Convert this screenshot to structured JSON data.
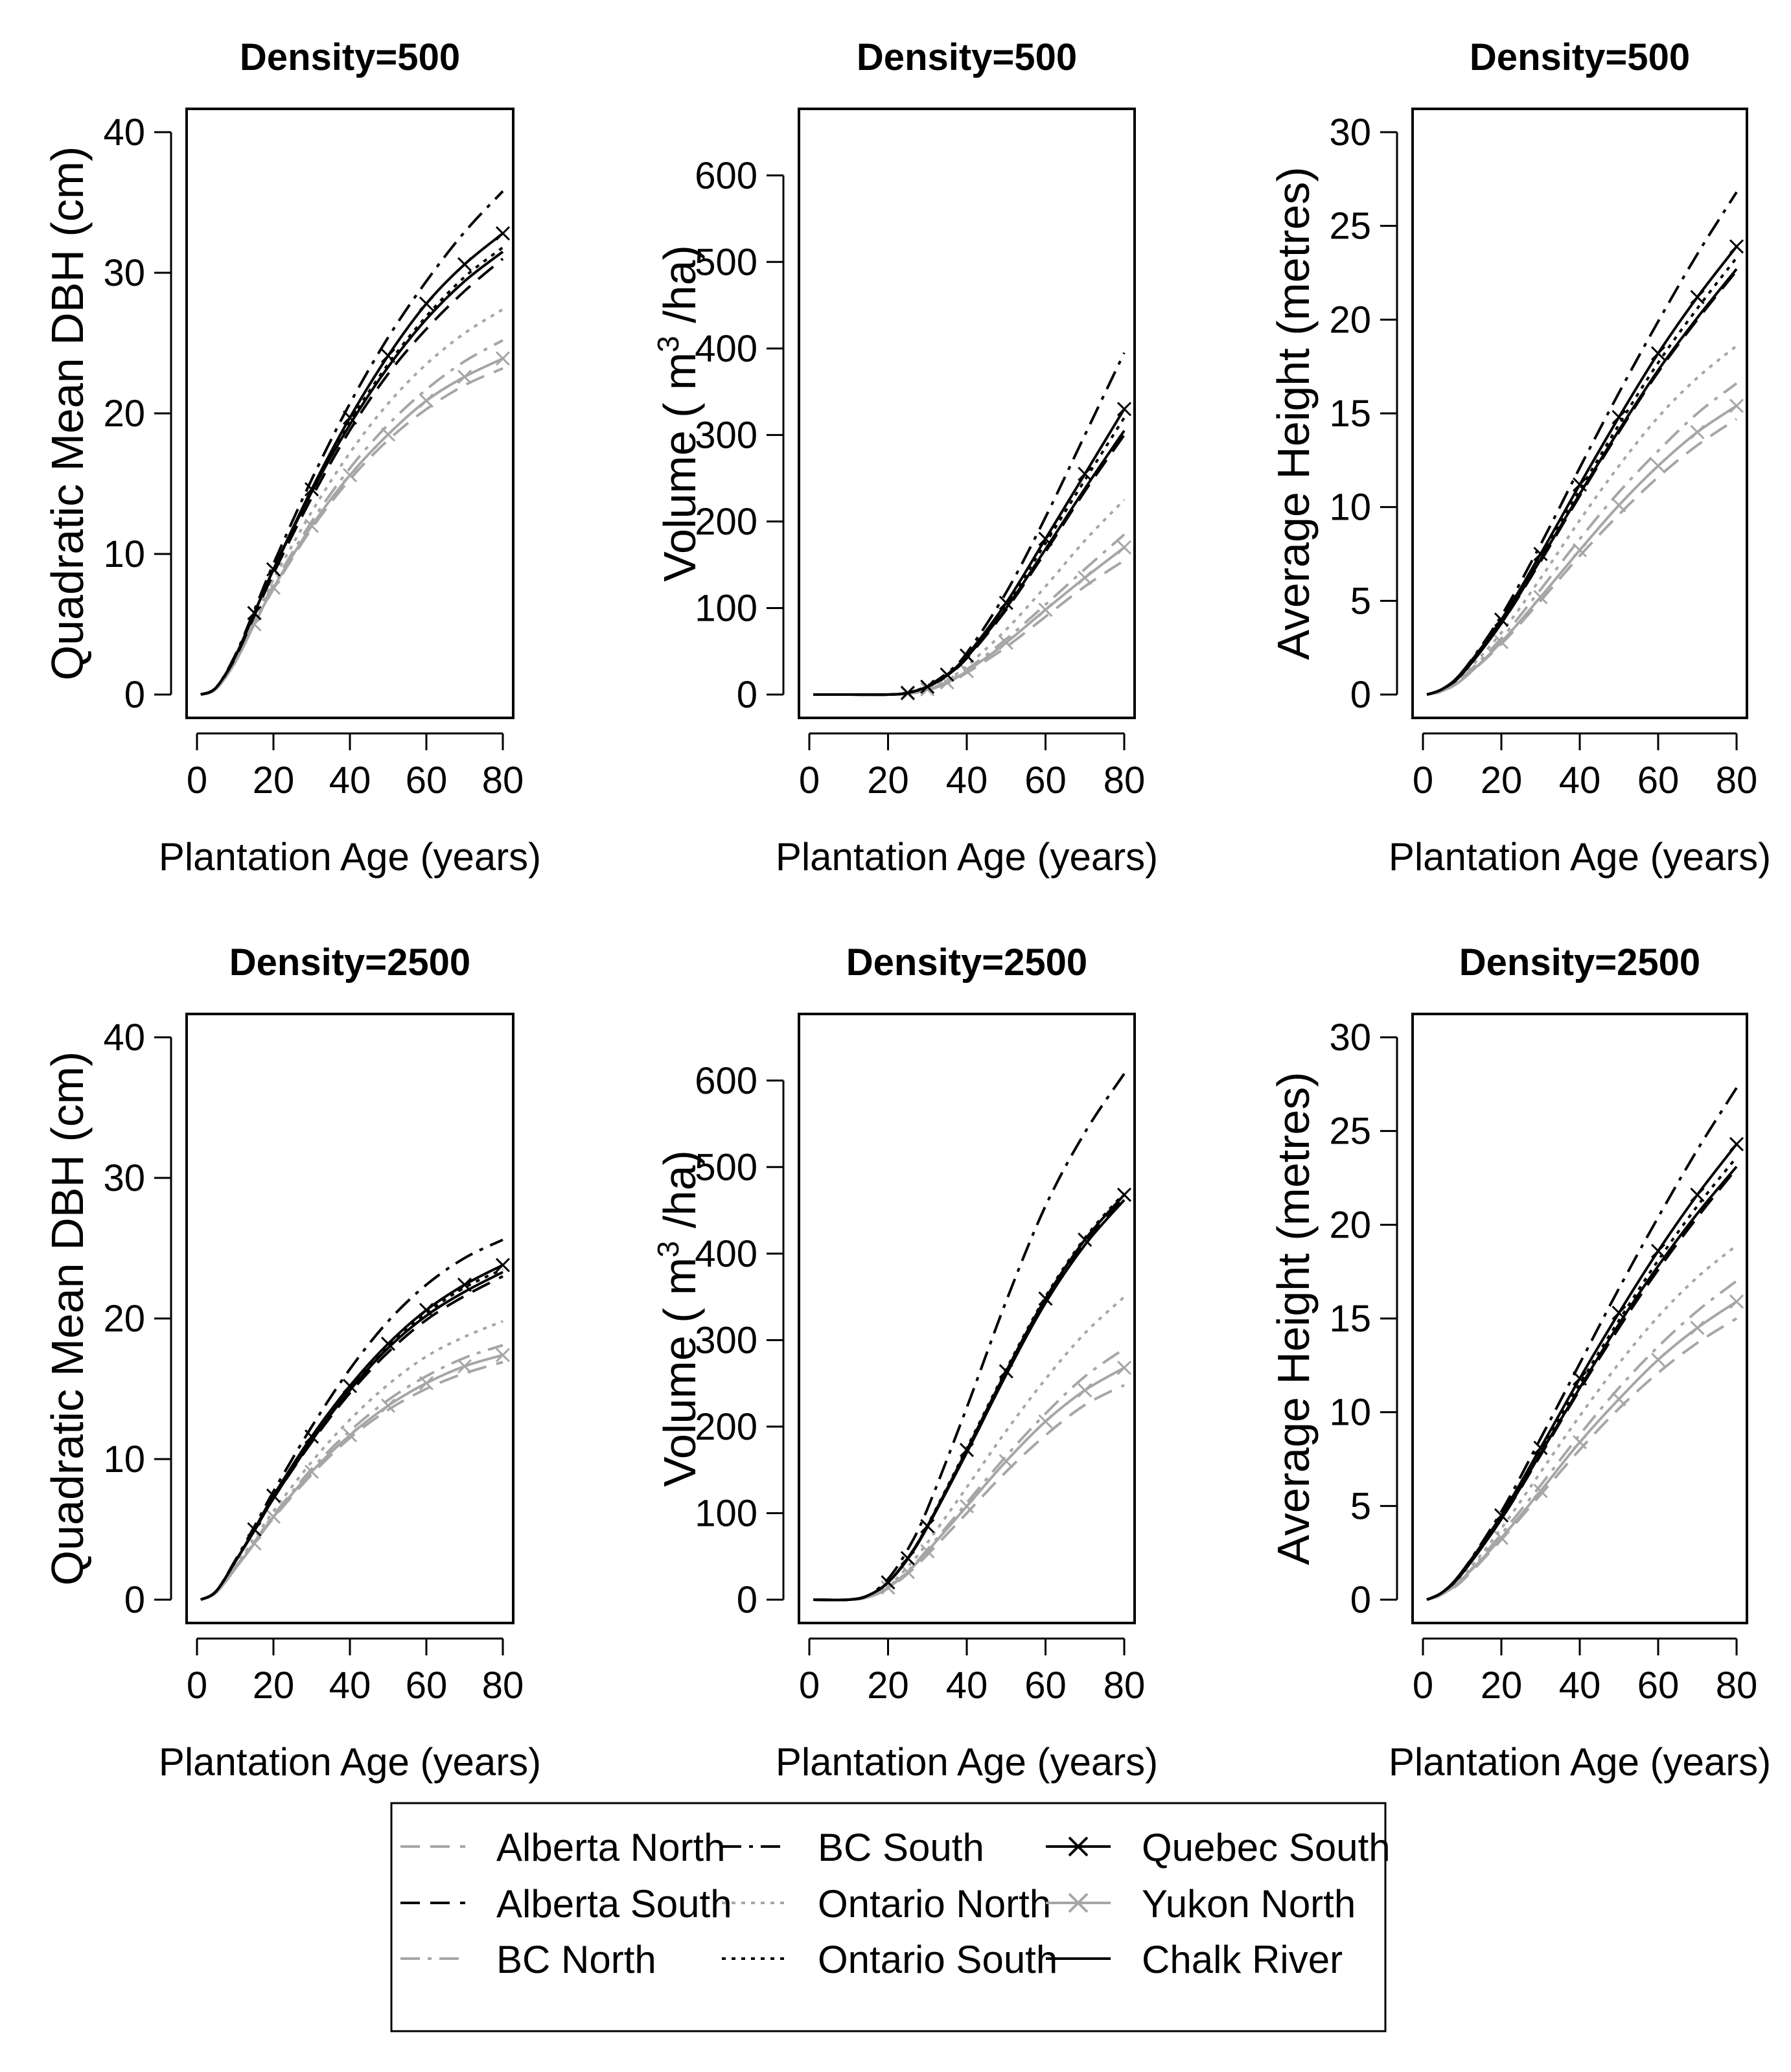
{
  "chart_data": [
    {
      "type": "line",
      "title": "Density=500",
      "xlabel": "Plantation Age (years)",
      "ylabel": "Quadratic Mean DBH (cm)",
      "xlim": [
        0,
        80
      ],
      "ylim": [
        0,
        40
      ],
      "xticks": [
        0,
        20,
        40,
        60,
        80
      ],
      "yticks": [
        0,
        10,
        20,
        30,
        40
      ],
      "x": [
        1,
        5,
        10,
        15,
        20,
        30,
        40,
        50,
        60,
        70,
        80
      ],
      "series": [
        {
          "name": "Alberta North",
          "values": [
            0,
            0.4,
            2.3,
            5.0,
            7.5,
            11.8,
            15.3,
            18.1,
            20.3,
            22.0,
            23.2
          ]
        },
        {
          "name": "Alberta South",
          "values": [
            0,
            0.5,
            2.6,
            5.6,
            8.6,
            14.0,
            18.8,
            22.8,
            26.0,
            28.7,
            31.0
          ]
        },
        {
          "name": "BC North",
          "values": [
            0,
            0.4,
            2.4,
            5.2,
            7.8,
            12.3,
            16.1,
            19.2,
            21.7,
            23.7,
            25.2
          ]
        },
        {
          "name": "BC South",
          "values": [
            0,
            0.5,
            2.8,
            6.0,
            9.3,
            15.3,
            20.7,
            25.4,
            29.4,
            32.9,
            35.8
          ]
        },
        {
          "name": "Ontario North",
          "values": [
            0,
            0.4,
            2.5,
            5.4,
            8.2,
            13.0,
            17.2,
            20.7,
            23.5,
            25.7,
            27.4
          ]
        },
        {
          "name": "Ontario South",
          "values": [
            0,
            0.5,
            2.7,
            5.8,
            8.9,
            14.5,
            19.4,
            23.5,
            26.9,
            29.7,
            31.8
          ]
        },
        {
          "name": "Quebec South",
          "values": [
            0,
            0.5,
            2.7,
            5.8,
            8.9,
            14.6,
            19.7,
            24.1,
            27.8,
            30.6,
            32.8
          ]
        },
        {
          "name": "Yukon North",
          "values": [
            0,
            0.4,
            2.3,
            5.0,
            7.6,
            12.0,
            15.6,
            18.5,
            20.9,
            22.6,
            23.9
          ]
        },
        {
          "name": "Chalk River",
          "values": [
            0,
            0.5,
            2.7,
            5.8,
            8.9,
            14.4,
            19.2,
            23.3,
            26.7,
            29.4,
            31.5
          ]
        }
      ]
    },
    {
      "type": "line",
      "title": "Density=500",
      "xlabel": "Plantation Age (years)",
      "ylabel": "Volume ( m3 /ha)",
      "xlim": [
        0,
        80
      ],
      "ylim": [
        0,
        650
      ],
      "xticks": [
        0,
        20,
        40,
        60,
        80
      ],
      "yticks": [
        0,
        100,
        200,
        300,
        400,
        500,
        600
      ],
      "x": [
        1,
        10,
        20,
        25,
        30,
        35,
        40,
        50,
        60,
        70,
        80
      ],
      "series": [
        {
          "name": "Alberta North",
          "values": [
            0,
            0,
            0,
            1,
            5,
            13,
            25,
            55,
            90,
            125,
            155
          ]
        },
        {
          "name": "Alberta South",
          "values": [
            0,
            0,
            0,
            2,
            9,
            22,
            42,
            98,
            165,
            235,
            300
          ]
        },
        {
          "name": "BC North",
          "values": [
            0,
            0,
            0,
            1,
            6,
            15,
            29,
            64,
            104,
            145,
            185
          ]
        },
        {
          "name": "BC South",
          "values": [
            0,
            0,
            0,
            2,
            10,
            25,
            48,
            118,
            205,
            300,
            395
          ]
        },
        {
          "name": "Ontario North",
          "values": [
            0,
            0,
            0,
            1,
            7,
            17,
            33,
            75,
            125,
            178,
            225
          ]
        },
        {
          "name": "Ontario South",
          "values": [
            0,
            0,
            0,
            2,
            9,
            23,
            44,
            104,
            175,
            248,
            320
          ]
        },
        {
          "name": "Quebec South",
          "values": [
            0,
            0,
            0,
            2,
            9,
            23,
            45,
            106,
            180,
            255,
            330
          ]
        },
        {
          "name": "Yukon North",
          "values": [
            0,
            0,
            0,
            1,
            6,
            14,
            27,
            60,
            98,
            135,
            170
          ]
        },
        {
          "name": "Chalk River",
          "values": [
            0,
            0,
            0,
            2,
            9,
            22,
            43,
            100,
            168,
            238,
            305
          ]
        }
      ]
    },
    {
      "type": "line",
      "title": "Density=500",
      "xlabel": "Plantation Age (years)",
      "ylabel": "Average Height (metres)",
      "xlim": [
        0,
        80
      ],
      "ylim": [
        0,
        30
      ],
      "xticks": [
        0,
        20,
        40,
        60,
        80
      ],
      "yticks": [
        0,
        5,
        10,
        15,
        20,
        25,
        30
      ],
      "x": [
        1,
        5,
        10,
        20,
        30,
        40,
        50,
        60,
        70,
        80
      ],
      "series": [
        {
          "name": "Alberta North",
          "values": [
            0,
            0.2,
            0.8,
            2.7,
            5.0,
            7.4,
            9.6,
            11.6,
            13.3,
            14.7
          ]
        },
        {
          "name": "Alberta South",
          "values": [
            0,
            0.3,
            1.1,
            3.8,
            7.1,
            10.6,
            14.0,
            17.2,
            20.0,
            22.6
          ]
        },
        {
          "name": "BC North",
          "values": [
            0,
            0.2,
            0.9,
            3.0,
            5.6,
            8.3,
            10.8,
            13.0,
            15.0,
            16.6
          ]
        },
        {
          "name": "BC South",
          "values": [
            0,
            0.3,
            1.2,
            4.2,
            8.0,
            12.1,
            16.1,
            19.9,
            23.5,
            26.8
          ]
        },
        {
          "name": "Ontario North",
          "values": [
            0,
            0.2,
            1.0,
            3.3,
            6.2,
            9.3,
            12.2,
            14.8,
            16.9,
            18.6
          ]
        },
        {
          "name": "Ontario South",
          "values": [
            0,
            0.3,
            1.1,
            3.9,
            7.3,
            10.9,
            14.4,
            17.7,
            20.6,
            23.3
          ]
        },
        {
          "name": "Quebec South",
          "values": [
            0,
            0.3,
            1.2,
            4.0,
            7.5,
            11.2,
            14.8,
            18.2,
            21.2,
            23.9
          ]
        },
        {
          "name": "Yukon North",
          "values": [
            0,
            0.2,
            0.8,
            2.8,
            5.2,
            7.7,
            10.1,
            12.2,
            14.0,
            15.4
          ]
        },
        {
          "name": "Chalk River",
          "values": [
            0,
            0.3,
            1.1,
            3.8,
            7.2,
            10.7,
            14.1,
            17.3,
            20.1,
            22.7
          ]
        }
      ]
    },
    {
      "type": "line",
      "title": "Density=2500",
      "xlabel": "Plantation Age (years)",
      "ylabel": "Quadratic Mean DBH (cm)",
      "xlim": [
        0,
        80
      ],
      "ylim": [
        0,
        40
      ],
      "xticks": [
        0,
        20,
        40,
        60,
        80
      ],
      "yticks": [
        0,
        10,
        20,
        30,
        40
      ],
      "x": [
        1,
        5,
        10,
        15,
        20,
        30,
        40,
        50,
        60,
        70,
        80
      ],
      "series": [
        {
          "name": "Alberta North",
          "values": [
            0,
            0.5,
            2.2,
            4.0,
            5.8,
            8.9,
            11.5,
            13.5,
            15.0,
            16.1,
            16.9
          ]
        },
        {
          "name": "Alberta South",
          "values": [
            0,
            0.6,
            2.7,
            4.9,
            7.2,
            11.2,
            14.7,
            17.6,
            19.9,
            21.6,
            23.0
          ]
        },
        {
          "name": "BC North",
          "values": [
            0,
            0.5,
            2.3,
            4.1,
            6.0,
            9.3,
            12.0,
            14.2,
            15.9,
            17.2,
            18.1
          ]
        },
        {
          "name": "BC South",
          "values": [
            0,
            0.6,
            2.8,
            5.2,
            7.7,
            12.3,
            16.4,
            19.8,
            22.4,
            24.3,
            25.6
          ]
        },
        {
          "name": "Ontario North",
          "values": [
            0,
            0.5,
            2.4,
            4.3,
            6.3,
            9.8,
            12.8,
            15.3,
            17.3,
            18.7,
            19.8
          ]
        },
        {
          "name": "Ontario South",
          "values": [
            0,
            0.6,
            2.7,
            5.0,
            7.3,
            11.5,
            15.1,
            18.1,
            20.4,
            22.2,
            23.5
          ]
        },
        {
          "name": "Quebec South",
          "values": [
            0,
            0.6,
            2.7,
            5.0,
            7.4,
            11.6,
            15.2,
            18.2,
            20.6,
            22.4,
            23.8
          ]
        },
        {
          "name": "Yukon North",
          "values": [
            0,
            0.5,
            2.2,
            4.0,
            5.9,
            9.1,
            11.7,
            13.8,
            15.4,
            16.6,
            17.4
          ]
        },
        {
          "name": "Chalk River",
          "values": [
            0,
            0.6,
            2.7,
            4.9,
            7.2,
            11.3,
            14.9,
            17.9,
            20.2,
            21.9,
            23.3
          ]
        }
      ]
    },
    {
      "type": "line",
      "title": "Density=2500",
      "xlabel": "Plantation Age (years)",
      "ylabel": "Volume ( m3 /ha)",
      "xlim": [
        0,
        80
      ],
      "ylim": [
        0,
        650
      ],
      "xticks": [
        0,
        20,
        40,
        60,
        80
      ],
      "yticks": [
        0,
        100,
        200,
        300,
        400,
        500,
        600
      ],
      "x": [
        1,
        10,
        15,
        20,
        25,
        30,
        40,
        50,
        60,
        70,
        80
      ],
      "series": [
        {
          "name": "Alberta North",
          "values": [
            0,
            0,
            3,
            13,
            30,
            52,
            100,
            148,
            190,
            225,
            248
          ]
        },
        {
          "name": "Alberta South",
          "values": [
            0,
            0,
            5,
            20,
            48,
            85,
            172,
            262,
            345,
            412,
            465
          ]
        },
        {
          "name": "BC North",
          "values": [
            0,
            0,
            3,
            14,
            33,
            58,
            112,
            166,
            215,
            258,
            290
          ]
        },
        {
          "name": "BC South",
          "values": [
            0,
            0,
            5,
            24,
            58,
            105,
            222,
            345,
            455,
            540,
            608
          ]
        },
        {
          "name": "Ontario North",
          "values": [
            0,
            0,
            4,
            16,
            38,
            66,
            130,
            195,
            255,
            308,
            350
          ]
        },
        {
          "name": "Ontario South",
          "values": [
            0,
            0,
            5,
            20,
            48,
            86,
            175,
            266,
            350,
            418,
            470
          ]
        },
        {
          "name": "Quebec South",
          "values": [
            0,
            0,
            5,
            20,
            48,
            85,
            173,
            264,
            348,
            416,
            468
          ]
        },
        {
          "name": "Yukon North",
          "values": [
            0,
            0,
            3,
            14,
            32,
            56,
            108,
            160,
            206,
            242,
            268
          ]
        },
        {
          "name": "Chalk River",
          "values": [
            0,
            0,
            5,
            20,
            47,
            84,
            170,
            260,
            343,
            410,
            462
          ]
        }
      ]
    },
    {
      "type": "line",
      "title": "Density=2500",
      "xlabel": "Plantation Age (years)",
      "ylabel": "Average Height (metres)",
      "xlim": [
        0,
        80
      ],
      "ylim": [
        0,
        30
      ],
      "xticks": [
        0,
        20,
        40,
        60,
        80
      ],
      "yticks": [
        0,
        5,
        10,
        15,
        20,
        25,
        30
      ],
      "x": [
        1,
        5,
        10,
        20,
        30,
        40,
        50,
        60,
        70,
        80
      ],
      "series": [
        {
          "name": "Alberta North",
          "values": [
            0,
            0.3,
            1.0,
            3.2,
            5.6,
            8.0,
            10.2,
            12.1,
            13.7,
            15.0
          ]
        },
        {
          "name": "Alberta South",
          "values": [
            0,
            0.4,
            1.4,
            4.3,
            7.7,
            11.2,
            14.5,
            17.6,
            20.4,
            23.0
          ]
        },
        {
          "name": "BC North",
          "values": [
            0,
            0.3,
            1.1,
            3.5,
            6.1,
            8.8,
            11.3,
            13.5,
            15.4,
            17.0
          ]
        },
        {
          "name": "BC South",
          "values": [
            0,
            0.4,
            1.5,
            4.7,
            8.6,
            12.6,
            16.6,
            20.4,
            24.0,
            27.3
          ]
        },
        {
          "name": "Ontario North",
          "values": [
            0,
            0.3,
            1.2,
            3.8,
            6.8,
            9.8,
            12.6,
            15.1,
            17.2,
            18.9
          ]
        },
        {
          "name": "Ontario South",
          "values": [
            0,
            0.4,
            1.4,
            4.4,
            7.9,
            11.5,
            14.9,
            18.1,
            21.0,
            23.6
          ]
        },
        {
          "name": "Quebec South",
          "values": [
            0,
            0.4,
            1.5,
            4.5,
            8.1,
            11.8,
            15.3,
            18.6,
            21.6,
            24.3
          ]
        },
        {
          "name": "Yukon North",
          "values": [
            0,
            0.3,
            1.1,
            3.3,
            5.8,
            8.4,
            10.7,
            12.8,
            14.5,
            15.9
          ]
        },
        {
          "name": "Chalk River",
          "values": [
            0,
            0.4,
            1.4,
            4.3,
            7.8,
            11.3,
            14.7,
            17.8,
            20.6,
            23.1
          ]
        }
      ]
    }
  ],
  "legend": {
    "position": "bottom",
    "entries": [
      {
        "name": "Alberta North",
        "color": "#a6a6a6",
        "dash": "dashed",
        "marker": ""
      },
      {
        "name": "Alberta South",
        "color": "#000000",
        "dash": "dashed",
        "marker": ""
      },
      {
        "name": "BC North",
        "color": "#a6a6a6",
        "dash": "dashdot",
        "marker": ""
      },
      {
        "name": "BC South",
        "color": "#000000",
        "dash": "dashdot",
        "marker": ""
      },
      {
        "name": "Ontario North",
        "color": "#a6a6a6",
        "dash": "dotted",
        "marker": ""
      },
      {
        "name": "Ontario South",
        "color": "#000000",
        "dash": "dotted",
        "marker": ""
      },
      {
        "name": "Quebec South",
        "color": "#000000",
        "dash": "solid",
        "marker": "x"
      },
      {
        "name": "Yukon North",
        "color": "#a6a6a6",
        "dash": "solid",
        "marker": "x"
      },
      {
        "name": "Chalk River",
        "color": "#000000",
        "dash": "solid",
        "marker": ""
      }
    ]
  }
}
